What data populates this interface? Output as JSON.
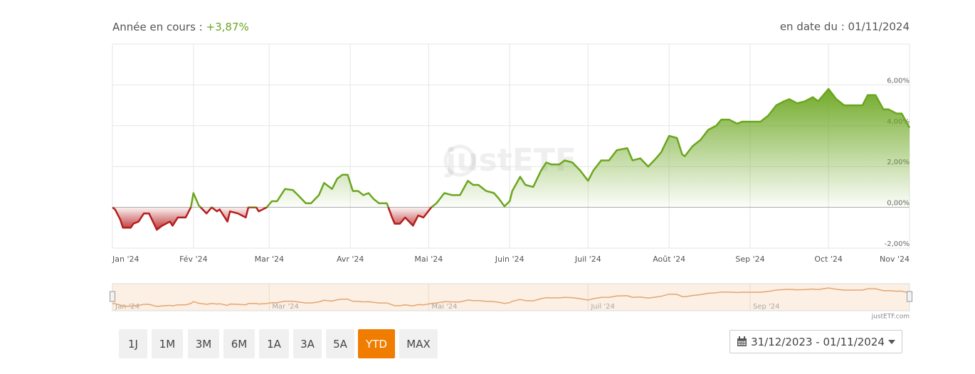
{
  "header": {
    "label": "Année en cours :",
    "value": "+3,87%",
    "date": "en date du : 01/11/2024"
  },
  "chart_data": {
    "type": "area",
    "x": [
      0,
      1,
      3,
      4,
      7,
      8,
      10,
      12,
      14,
      17,
      19,
      22,
      23,
      25,
      28,
      30,
      31,
      33,
      36,
      38,
      40,
      41,
      44,
      45,
      48,
      51,
      52,
      55,
      56,
      59,
      61,
      63,
      66,
      69,
      71,
      74,
      76,
      79,
      81,
      84,
      86,
      88,
      90,
      92,
      94,
      96,
      98,
      100,
      102,
      105,
      107,
      108,
      110,
      112,
      115,
      117,
      119,
      122,
      124,
      127,
      130,
      133,
      136,
      138,
      140,
      143,
      146,
      148,
      150,
      152,
      153,
      156,
      158,
      161,
      164,
      166,
      168,
      171,
      173,
      176,
      179,
      182,
      184,
      187,
      190,
      193,
      197,
      199,
      202,
      205,
      208,
      210,
      213,
      216,
      218,
      219,
      222,
      225,
      228,
      231,
      233,
      236,
      239,
      241,
      246,
      248,
      251,
      254,
      257,
      259,
      262,
      265,
      268,
      270,
      274,
      277,
      280,
      282,
      287,
      289,
      292,
      295,
      297,
      300,
      302,
      305
    ],
    "values": [
      0.0,
      -0.1,
      -0.6,
      -1.0,
      -1.0,
      -0.8,
      -0.7,
      -0.3,
      -0.3,
      -1.1,
      -0.9,
      -0.7,
      -0.9,
      -0.5,
      -0.5,
      0.0,
      0.7,
      0.1,
      -0.3,
      0.0,
      -0.2,
      -0.1,
      -0.7,
      -0.2,
      -0.3,
      -0.5,
      0.0,
      0.0,
      -0.2,
      0.0,
      0.3,
      0.3,
      0.9,
      0.85,
      0.6,
      0.2,
      0.2,
      0.6,
      1.2,
      0.9,
      1.4,
      1.6,
      1.6,
      0.8,
      0.8,
      0.6,
      0.7,
      0.4,
      0.2,
      0.2,
      -0.5,
      -0.8,
      -0.8,
      -0.5,
      -0.9,
      -0.4,
      -0.5,
      0.0,
      0.2,
      0.7,
      0.6,
      0.6,
      1.3,
      1.1,
      1.1,
      0.8,
      0.7,
      0.4,
      0.05,
      0.3,
      0.8,
      1.5,
      1.1,
      1.0,
      1.8,
      2.2,
      2.1,
      2.1,
      2.3,
      2.2,
      1.8,
      1.3,
      1.8,
      2.3,
      2.3,
      2.8,
      2.9,
      2.3,
      2.4,
      2.0,
      2.4,
      2.7,
      3.5,
      3.4,
      2.6,
      2.5,
      3.0,
      3.3,
      3.8,
      4.0,
      4.3,
      4.3,
      4.1,
      4.2,
      4.2,
      4.2,
      4.5,
      5.0,
      5.2,
      5.3,
      5.1,
      5.2,
      5.4,
      5.2,
      5.8,
      5.3,
      5.0,
      5.0,
      5.0,
      5.5,
      5.5,
      4.8,
      4.8,
      4.6,
      4.6,
      3.9
    ],
    "positive_color": "#6aa61e",
    "negative_color": "#b51d1d",
    "xlim": [
      0,
      305
    ],
    "xticks": [
      {
        "value": 0,
        "label": "Jan '24"
      },
      {
        "value": 31,
        "label": "Fév '24"
      },
      {
        "value": 60,
        "label": "Mar '24"
      },
      {
        "value": 91,
        "label": "Avr '24"
      },
      {
        "value": 121,
        "label": "Mai '24"
      },
      {
        "value": 152,
        "label": "Juin '24"
      },
      {
        "value": 182,
        "label": "Juil '24"
      },
      {
        "value": 213,
        "label": "Août '24"
      },
      {
        "value": 244,
        "label": "Sep '24"
      },
      {
        "value": 274,
        "label": "Oct '24"
      },
      {
        "value": 305,
        "label": "Nov '24"
      }
    ],
    "ylim": [
      -2,
      8
    ],
    "yticks": [
      {
        "value": -2,
        "label": "-2,00%"
      },
      {
        "value": 0,
        "label": "0,00%"
      },
      {
        "value": 2,
        "label": "2,00%"
      },
      {
        "value": 4,
        "label": "4,00%"
      },
      {
        "value": 6,
        "label": "6,00%"
      }
    ],
    "grid": true
  },
  "watermark": "justETF",
  "navigator": {
    "xticks": [
      {
        "value": 0,
        "label": "Jan '24"
      },
      {
        "value": 60,
        "label": "Mar '24"
      },
      {
        "value": 121,
        "label": "Mai '24"
      },
      {
        "value": 182,
        "label": "Juil '24"
      },
      {
        "value": 244,
        "label": "Sep '24"
      }
    ]
  },
  "credit": "justETF.com",
  "buttons": [
    "1J",
    "1M",
    "3M",
    "6M",
    "1A",
    "3A",
    "5A",
    "YTD",
    "MAX"
  ],
  "selected_button": "YTD",
  "date_range": "31/12/2023 - 01/11/2024"
}
